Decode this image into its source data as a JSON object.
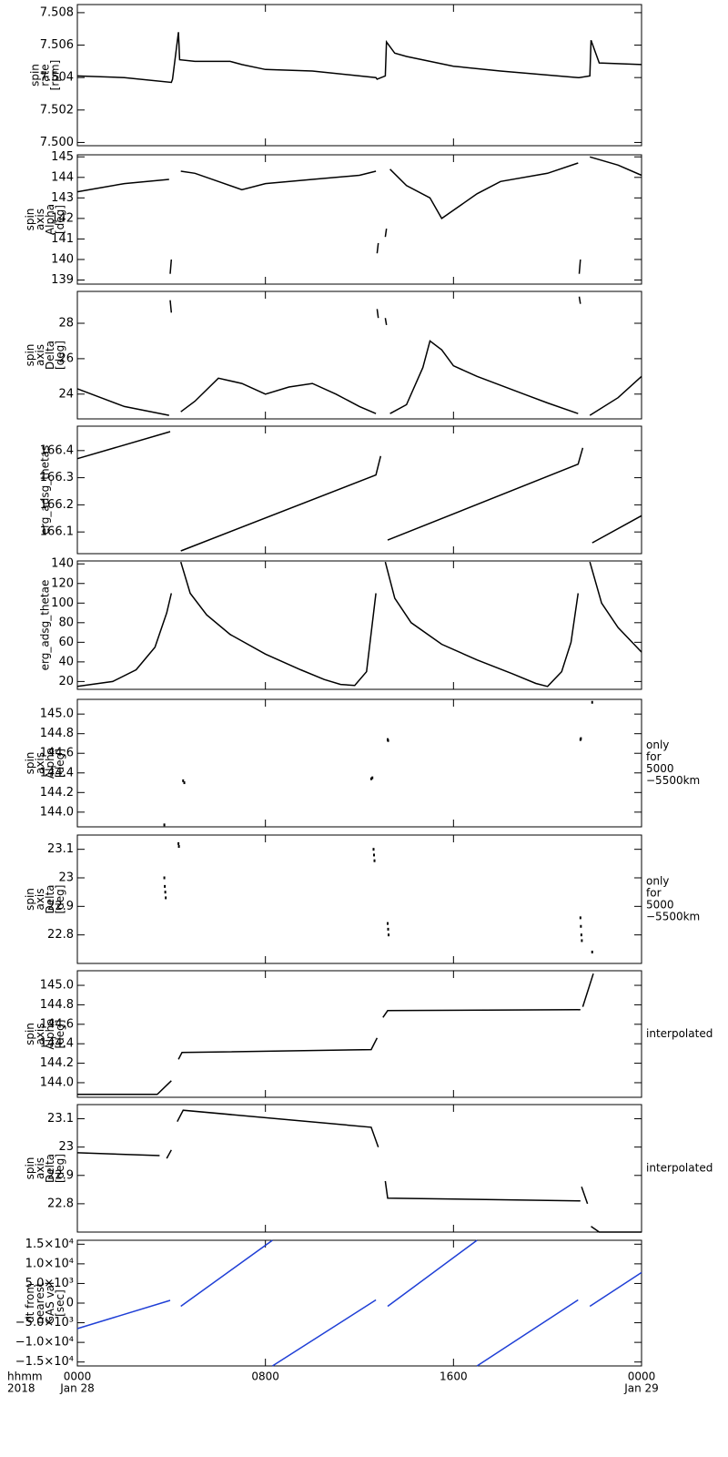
{
  "chart_data": [
    {
      "type": "line",
      "ylabel": [
        "spin",
        "rate",
        "[rpm]"
      ],
      "color": "#000000",
      "xlim": [
        0,
        24
      ],
      "xticks": [
        0,
        8,
        16,
        24
      ],
      "ylim": [
        7.4998,
        7.5085
      ],
      "yticks": [
        {
          "value": 7.5,
          "label": "7.500"
        },
        7.502,
        7.504,
        7.506,
        7.508
      ],
      "x": [
        0,
        2,
        4.0,
        4.05,
        4.3,
        4.35,
        5,
        6.5,
        7,
        8,
        10,
        12.7,
        12.75,
        13.1,
        13.15,
        13.5,
        14,
        16,
        18,
        21.3,
        21.35,
        21.8,
        21.85,
        22.2,
        24
      ],
      "values": [
        7.5041,
        7.504,
        7.5037,
        7.5039,
        7.5068,
        7.5051,
        7.505,
        7.505,
        7.5048,
        7.5045,
        7.5044,
        7.504,
        7.5039,
        7.5041,
        7.5062,
        7.5055,
        7.5053,
        7.5047,
        7.5044,
        7.504,
        7.504,
        7.5041,
        7.5063,
        7.5049,
        7.5048
      ]
    },
    {
      "type": "line",
      "ylabel": [
        "spin",
        "axis",
        "Alpha",
        "[deg]"
      ],
      "color": "#000000",
      "xlim": [
        0,
        24
      ],
      "xticks": [
        0,
        8,
        16,
        24
      ],
      "ylim": [
        138.8,
        145.1
      ],
      "yticks": [
        139,
        140,
        141,
        142,
        143,
        144,
        145
      ],
      "x": [
        0,
        1,
        2,
        3.9,
        null,
        3.95,
        4.0,
        null,
        4.4,
        5,
        6,
        7,
        8,
        10,
        12,
        12.7,
        null,
        12.75,
        12.8,
        null,
        13.1,
        13.15,
        null,
        13.3,
        14,
        15,
        15.5,
        16,
        17,
        18,
        20,
        21.3,
        null,
        21.35,
        21.4,
        null,
        21.8,
        23,
        24
      ],
      "values": [
        143.3,
        143.5,
        143.7,
        143.9,
        null,
        139.3,
        140.0,
        null,
        144.3,
        144.2,
        143.8,
        143.4,
        143.7,
        143.9,
        144.1,
        144.3,
        null,
        140.3,
        140.8,
        null,
        141.1,
        141.5,
        null,
        144.4,
        143.6,
        143.0,
        142.0,
        142.4,
        143.2,
        143.8,
        144.2,
        144.7,
        null,
        139.3,
        140.0,
        null,
        145.0,
        144.6,
        144.1
      ]
    },
    {
      "type": "line",
      "ylabel": [
        "spin",
        "axis",
        "Delta",
        "[deg]"
      ],
      "color": "#000000",
      "xlim": [
        0,
        24
      ],
      "xticks": [
        0,
        8,
        16,
        24
      ],
      "ylim": [
        22.6,
        29.8
      ],
      "yticks": [
        24,
        26,
        28
      ],
      "x": [
        0,
        1,
        2,
        3.9,
        null,
        3.95,
        4.0,
        null,
        4.4,
        5,
        6,
        7,
        8,
        9,
        10,
        11,
        12,
        12.7,
        null,
        12.75,
        12.8,
        null,
        13.1,
        13.15,
        null,
        13.3,
        14,
        14.7,
        15,
        15.5,
        16,
        17,
        18,
        19,
        20,
        21.3,
        null,
        21.35,
        21.4,
        null,
        21.8,
        23,
        24
      ],
      "values": [
        24.3,
        23.8,
        23.3,
        22.8,
        null,
        29.3,
        28.6,
        null,
        23.0,
        23.6,
        24.9,
        24.6,
        24.0,
        24.4,
        24.6,
        24.0,
        23.3,
        22.9,
        null,
        28.8,
        28.3,
        null,
        28.3,
        27.9,
        null,
        22.9,
        23.4,
        25.5,
        27.0,
        26.5,
        25.6,
        25.0,
        24.5,
        24.0,
        23.5,
        22.9,
        null,
        29.5,
        29.1,
        null,
        22.8,
        23.8,
        25.0
      ]
    },
    {
      "type": "line",
      "ylabel": [
        "erg_adsg_thetas"
      ],
      "color": "#000000",
      "xlim": [
        0,
        24
      ],
      "xticks": [
        0,
        8,
        16,
        24
      ],
      "ylim": [
        166.02,
        166.49
      ],
      "yticks": [
        166.1,
        166.2,
        166.3,
        166.4
      ],
      "x": [
        0,
        3.95,
        null,
        4.4,
        12.7,
        12.9,
        null,
        13.2,
        21.3,
        21.5,
        null,
        21.9,
        24
      ],
      "values": [
        166.37,
        166.47,
        null,
        166.03,
        166.31,
        166.38,
        null,
        166.07,
        166.35,
        166.41,
        null,
        166.06,
        166.16
      ]
    },
    {
      "type": "line",
      "ylabel": [
        "erg_adsg_thetae"
      ],
      "color": "#000000",
      "xlim": [
        0,
        24
      ],
      "xticks": [
        0,
        8,
        16,
        24
      ],
      "ylim": [
        12,
        143
      ],
      "yticks": [
        20,
        40,
        60,
        80,
        100,
        120,
        140
      ],
      "x": [
        0,
        1.5,
        2.5,
        3.3,
        3.8,
        4.0,
        null,
        4.4,
        4.8,
        5.5,
        6.5,
        8,
        9.5,
        10.5,
        11.2,
        11.8,
        12.3,
        12.7,
        null,
        13.1,
        13.5,
        14.2,
        15.5,
        17,
        18.5,
        19.5,
        20,
        20.6,
        21.0,
        21.3,
        null,
        21.8,
        22.3,
        23,
        24
      ],
      "values": [
        15,
        20,
        32,
        55,
        90,
        110,
        null,
        142,
        110,
        88,
        68,
        48,
        32,
        22,
        17,
        16,
        30,
        110,
        null,
        142,
        105,
        80,
        58,
        42,
        28,
        18,
        15,
        30,
        60,
        110,
        null,
        142,
        100,
        75,
        50
      ]
    },
    {
      "type": "scatter",
      "ylabel": [
        "spin",
        "axis",
        "Alpha",
        "[deg]"
      ],
      "color": "#000000",
      "note": [
        "only",
        "for",
        "5000",
        "−5500km"
      ],
      "xlim": [
        0,
        24
      ],
      "xticks": [
        0,
        8,
        16,
        24
      ],
      "ylim": [
        143.85,
        145.15
      ],
      "yticks": [
        {
          "value": 144.0,
          "label": "144.0"
        },
        144.2,
        144.4,
        144.6,
        144.8,
        {
          "value": 145.0,
          "label": "145.0"
        }
      ],
      "x": [
        3.7,
        4.5,
        4.55,
        12.5,
        12.55,
        13.2,
        13.22,
        21.4,
        21.42,
        21.9
      ],
      "values": [
        143.87,
        144.32,
        144.3,
        144.34,
        144.35,
        144.74,
        144.73,
        144.74,
        144.75,
        145.12
      ]
    },
    {
      "type": "scatter",
      "ylabel": [
        "spin",
        "axis",
        "Delta",
        "[deg]"
      ],
      "color": "#000000",
      "note": [
        "only",
        "for",
        "5000",
        "−5500km"
      ],
      "xlim": [
        0,
        24
      ],
      "xticks": [
        0,
        8,
        16,
        24
      ],
      "ylim": [
        22.7,
        23.15
      ],
      "yticks": [
        22.8,
        22.9,
        23.0,
        23.1
      ],
      "x": [
        3.7,
        3.72,
        3.74,
        3.76,
        4.3,
        4.32,
        12.6,
        12.62,
        12.64,
        13.2,
        13.22,
        13.24,
        21.4,
        21.42,
        21.44,
        21.46,
        21.9
      ],
      "values": [
        23.0,
        22.97,
        22.95,
        22.93,
        23.12,
        23.11,
        23.1,
        23.08,
        23.06,
        22.84,
        22.82,
        22.8,
        22.86,
        22.83,
        22.8,
        22.78,
        22.74
      ]
    },
    {
      "type": "line",
      "ylabel": [
        "spin",
        "axis",
        "Alpha",
        "[deg]"
      ],
      "color": "#000000",
      "note": [
        "interpolated"
      ],
      "xlim": [
        0,
        24
      ],
      "xticks": [
        0,
        8,
        16,
        24
      ],
      "ylim": [
        143.85,
        145.15
      ],
      "yticks": [
        {
          "value": 144.0,
          "label": "144.0"
        },
        144.2,
        144.4,
        144.6,
        144.8,
        {
          "value": 145.0,
          "label": "145.0"
        }
      ],
      "x": [
        0,
        3.4,
        4.0,
        null,
        4.3,
        4.45,
        12.5,
        12.75,
        null,
        13.0,
        13.2,
        21.4,
        null,
        21.5,
        21.95
      ],
      "values": [
        143.88,
        143.88,
        144.02,
        null,
        144.24,
        144.31,
        144.34,
        144.46,
        null,
        144.67,
        144.74,
        144.75,
        null,
        144.78,
        145.12
      ]
    },
    {
      "type": "line",
      "ylabel": [
        "spin",
        "axis",
        "Delta",
        "[deg]"
      ],
      "color": "#000000",
      "note": [
        "interpolated"
      ],
      "xlim": [
        0,
        24
      ],
      "xticks": [
        0,
        8,
        16,
        24
      ],
      "ylim": [
        22.7,
        23.15
      ],
      "yticks": [
        22.8,
        22.9,
        23.0,
        23.1
      ],
      "x": [
        0,
        3.5,
        null,
        3.8,
        4.0,
        null,
        4.25,
        4.5,
        12.5,
        12.8,
        null,
        13.1,
        13.2,
        21.4,
        null,
        21.45,
        21.7,
        null,
        21.85,
        22.2,
        24
      ],
      "values": [
        22.98,
        22.97,
        null,
        22.96,
        22.99,
        null,
        23.09,
        23.13,
        23.07,
        23.0,
        null,
        22.88,
        22.82,
        22.81,
        null,
        22.86,
        22.8,
        null,
        22.72,
        22.7,
        22.7
      ]
    },
    {
      "type": "line",
      "ylabel": [
        "dt from",
        "nearest",
        "GAS val",
        "[sec]"
      ],
      "color": "#1f3fd6",
      "xlim": [
        0,
        24
      ],
      "xticks": [
        {
          "value": 0,
          "label": "0000"
        },
        {
          "value": 8,
          "label": "0800"
        },
        {
          "value": 16,
          "label": "1600"
        },
        {
          "value": 24,
          "label": "0000"
        }
      ],
      "xtick_sublabels": [
        "Jan 28",
        null,
        null,
        "Jan 29"
      ],
      "xlabel": [
        "hhmm",
        "2018"
      ],
      "ylim": [
        -16000,
        16000
      ],
      "yticks": [
        {
          "value": 15000,
          "label": "1.5×10⁴"
        },
        {
          "value": 10000,
          "label": "1.0×10⁴"
        },
        {
          "value": 5000,
          "label": "5.0×10³"
        },
        0,
        {
          "value": -5000,
          "label": "−5.0×10³"
        },
        {
          "value": -10000,
          "label": "−1.0×10⁴"
        },
        {
          "value": -15000,
          "label": "−1.5×10⁴"
        }
      ],
      "x": [
        0,
        3.95,
        null,
        4.4,
        8.3,
        null,
        8.3,
        12.7,
        null,
        13.2,
        17.0,
        null,
        17.0,
        21.3,
        null,
        21.8,
        24
      ],
      "values": [
        -6500,
        700,
        null,
        -800,
        16000,
        null,
        -16000,
        800,
        null,
        -800,
        16000,
        null,
        -16000,
        800,
        null,
        -800,
        7800
      ]
    }
  ]
}
